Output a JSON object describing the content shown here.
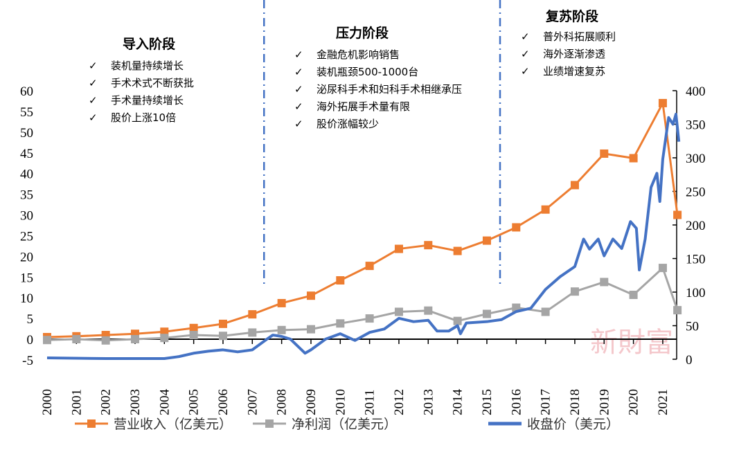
{
  "chart_data": {
    "type": "line",
    "title": "",
    "x_ticks": [
      "2000",
      "2001",
      "2002",
      "2003",
      "2004",
      "2005",
      "2006",
      "2007",
      "2008",
      "2009",
      "2010",
      "2011",
      "2012",
      "2013",
      "2014",
      "2015",
      "2016",
      "2017",
      "2018",
      "2019",
      "2020",
      "2021"
    ],
    "y_left": {
      "min": -5,
      "max": 60,
      "ticks": [
        -5,
        0,
        5,
        10,
        15,
        20,
        25,
        30,
        35,
        40,
        45,
        50,
        55,
        60
      ]
    },
    "y_right": {
      "min": 0,
      "max": 400,
      "ticks": [
        0,
        50,
        100,
        150,
        200,
        250,
        300,
        350,
        400
      ]
    },
    "grid": false,
    "legend_position": "bottom",
    "series": [
      {
        "name": "营业收入（亿美元）",
        "axis": "left",
        "color": "#ED7D31",
        "marker": "square",
        "x": [
          2000,
          2001,
          2002,
          2003,
          2004,
          2005,
          2006,
          2007,
          2008,
          2009,
          2010,
          2011,
          2012,
          2013,
          2014,
          2015,
          2016,
          2017,
          2018,
          2019,
          2020,
          2021,
          2021.5
        ],
        "values": [
          0.5,
          0.7,
          1.0,
          1.3,
          1.8,
          2.7,
          3.7,
          6.0,
          8.7,
          10.5,
          14.2,
          17.7,
          21.8,
          22.7,
          21.3,
          23.8,
          27.0,
          31.3,
          37.2,
          44.8,
          43.7,
          57.0,
          30.0
        ]
      },
      {
        "name": "净利润（亿美元）",
        "axis": "left",
        "color": "#A5A5A5",
        "marker": "square",
        "x": [
          2000,
          2001,
          2002,
          2003,
          2004,
          2005,
          2006,
          2007,
          2008,
          2009,
          2010,
          2011,
          2012,
          2013,
          2014,
          2015,
          2016,
          2017,
          2018,
          2019,
          2020,
          2021,
          2021.5
        ],
        "values": [
          -0.2,
          0,
          -0.3,
          0,
          0.3,
          1.0,
          0.8,
          1.6,
          2.2,
          2.4,
          3.8,
          5.0,
          6.6,
          6.9,
          4.4,
          6.1,
          7.6,
          6.6,
          11.5,
          13.8,
          10.7,
          17.2,
          7.0
        ]
      },
      {
        "name": "收盘价（美元）",
        "axis": "right",
        "color": "#4472C4",
        "marker": "none",
        "x": [
          2000,
          2002,
          2004,
          2004.5,
          2005,
          2005.5,
          2006,
          2006.5,
          2007,
          2007.5,
          2007.7,
          2008,
          2008.3,
          2008.8,
          2009,
          2009.5,
          2010,
          2010.5,
          2011,
          2011.5,
          2012,
          2012.5,
          2013,
          2013.3,
          2013.7,
          2014,
          2014.1,
          2014.3,
          2015,
          2015.5,
          2016,
          2016.5,
          2017,
          2017.5,
          2018,
          2018.3,
          2018.5,
          2018.8,
          2019,
          2019.3,
          2019.6,
          2019.9,
          2020.1,
          2020.2,
          2020.4,
          2020.6,
          2020.8,
          2020.9,
          2021,
          2021.2,
          2021.35,
          2021.45,
          2021.55
        ],
        "values": [
          2,
          1,
          1,
          4,
          9,
          12,
          14,
          11,
          14,
          30,
          36,
          34,
          30,
          9,
          14,
          30,
          38,
          28,
          40,
          45,
          61,
          56,
          58,
          42,
          42,
          50,
          38,
          54,
          56,
          59,
          71,
          76,
          104,
          123,
          138,
          179,
          164,
          179,
          154,
          179,
          165,
          205,
          195,
          133,
          179,
          256,
          277,
          235,
          298,
          360,
          350,
          365,
          324
        ]
      }
    ],
    "vertical_dividers": [
      2007.4,
      2015.45
    ]
  },
  "annotations": [
    {
      "title": "导入阶段",
      "items": [
        "装机量持续增长",
        "手术术式不断获批",
        "手术量持续增长",
        "股价上涨10倍"
      ]
    },
    {
      "title": "压力阶段",
      "items": [
        "金融危机影响销售",
        "装机瓶颈500-1000台",
        "泌尿科手术和妇科手术相继承压",
        "海外拓展手术量有限",
        "股价涨幅较少"
      ]
    },
    {
      "title": "复苏阶段",
      "items": [
        "普外科拓展顺利",
        "海外逐渐渗透",
        "业绩增速复苏"
      ]
    }
  ],
  "check_mark": "✓",
  "watermark": "新財富"
}
